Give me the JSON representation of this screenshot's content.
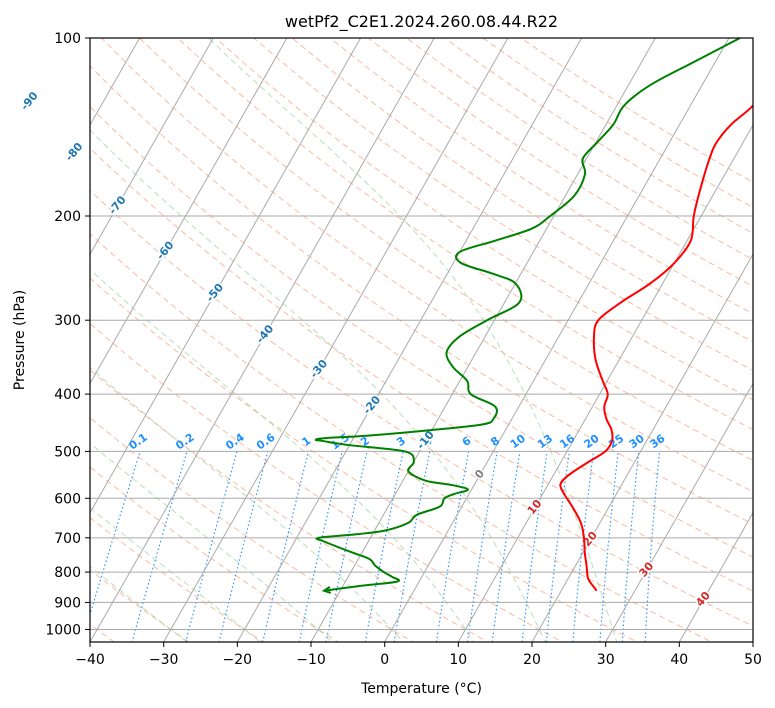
{
  "chart_data": {
    "type": "line",
    "title": "wetPf2_C2E1.2024.260.08.44.R22",
    "xlabel": "Temperature (°C)",
    "ylabel": "Pressure (hPa)",
    "xlim": [
      -40,
      50
    ],
    "ylim": [
      1050,
      100
    ],
    "x_ticks": [
      -40,
      -30,
      -20,
      -10,
      0,
      10,
      20,
      30,
      40,
      50
    ],
    "x_tick_labels": [
      "−40",
      "−30",
      "−20",
      "−10",
      "0",
      "10",
      "20",
      "30",
      "40",
      "50"
    ],
    "y_ticks": [
      100,
      200,
      300,
      400,
      500,
      600,
      700,
      800,
      900,
      1000
    ],
    "y_tick_labels": [
      "100",
      "200",
      "300",
      "400",
      "500",
      "600",
      "700",
      "800",
      "900",
      "1000"
    ],
    "grid": true,
    "colors": {
      "temperature": "#ff0000",
      "dewpoint": "#008000",
      "isotherm": "#aaaaaa",
      "isobar": "#aaaaaa",
      "dry_adiabat": "#f4a582",
      "moist_adiabat": "#a6d8a6",
      "mixing_ratio": "#1e90ff",
      "upper_label": "#1f77b4",
      "dry_label": "#d62728",
      "zero_label": "#808080"
    },
    "series": [
      {
        "name": "Temperature",
        "pressure": [
          860,
          845,
          820,
          780,
          740,
          700,
          660,
          620,
          590,
          570,
          555,
          540,
          520,
          500,
          480,
          460,
          440,
          420,
          400,
          380,
          350,
          320,
          300,
          280,
          260,
          240,
          220,
          200,
          180,
          160,
          150,
          140,
          130,
          120,
          110,
          100
        ],
        "values": [
          24.8,
          24.0,
          22.7,
          21.5,
          20.2,
          19.0,
          17.4,
          15.0,
          12.9,
          11.7,
          11.8,
          12.5,
          13.8,
          15.2,
          15.3,
          14.4,
          12.8,
          11.6,
          11.1,
          9.4,
          6.8,
          4.8,
          4.1,
          5.8,
          8.3,
          10.0,
          10.5,
          9.0,
          7.8,
          6.7,
          6.4,
          7.0,
          8.5,
          8.7,
          9.1,
          11.6
        ]
      },
      {
        "name": "Dewpoint",
        "pressure": [
          860,
          845,
          830,
          815,
          800,
          780,
          760,
          740,
          710,
          700,
          690,
          680,
          660,
          640,
          620,
          600,
          590,
          580,
          570,
          560,
          540,
          520,
          500,
          488,
          480,
          478,
          475,
          470,
          460,
          450,
          440,
          420,
          400,
          380,
          360,
          340,
          320,
          300,
          280,
          260,
          250,
          240,
          230,
          220,
          210,
          200,
          185,
          170,
          160,
          150,
          140,
          130,
          120,
          110,
          100
        ],
        "values": [
          -12.2,
          -8.0,
          -3.0,
          -4.0,
          -5.5,
          -7.2,
          -8.5,
          -11.5,
          -16.0,
          -17.0,
          -12.0,
          -8.5,
          -6.0,
          -5.5,
          -3.0,
          -3.0,
          -2.0,
          -0.5,
          -3.0,
          -7.0,
          -10.0,
          -10.0,
          -12.0,
          -20.0,
          -24.0,
          -25.0,
          -24.0,
          -18.0,
          -10.0,
          -3.5,
          -2.5,
          -3.2,
          -7.5,
          -9.0,
          -12.0,
          -14.0,
          -13.5,
          -11.0,
          -8.0,
          -10.0,
          -14.0,
          -19.0,
          -20.0,
          -16.0,
          -12.0,
          -10.5,
          -8.8,
          -9.0,
          -10.5,
          -9.8,
          -9.0,
          -9.0,
          -7.0,
          -3.0,
          1.5
        ]
      }
    ],
    "isotherms": [
      -110,
      -100,
      -90,
      -80,
      -70,
      -60,
      -50,
      -40,
      -30,
      -20,
      -10,
      0,
      10,
      20,
      30,
      40,
      50
    ],
    "dry_adiabats_C": [
      -50,
      -40,
      -30,
      -20,
      -10,
      0,
      10,
      20,
      30,
      40,
      50,
      60,
      70,
      80,
      90,
      100,
      110,
      120,
      130,
      140,
      150,
      160,
      170,
      180,
      190,
      200
    ],
    "moist_adiabats_C": [
      -30,
      -20,
      -10,
      0,
      10,
      20,
      30
    ],
    "mixing_ratio_lines_gkg": [
      0.1,
      0.2,
      0.4,
      0.6,
      1,
      1.5,
      2,
      3,
      4,
      6,
      8,
      10,
      13,
      16,
      20,
      25,
      30,
      36
    ],
    "mixing_ratio_labels": [
      "0.1",
      "0.2",
      "0.4",
      "0.6",
      "1",
      "1.5",
      "2",
      "3",
      "4",
      "6",
      "8",
      "10",
      "13",
      "16",
      "20",
      "25",
      "30",
      "36"
    ],
    "isotherm_labels": [
      {
        "text": "-100",
        "value": -100,
        "pressure": 107
      },
      {
        "text": "-90",
        "value": -90,
        "pressure": 128
      },
      {
        "text": "-80",
        "value": -80,
        "pressure": 156
      },
      {
        "text": "-70",
        "value": -70,
        "pressure": 192
      },
      {
        "text": "-60",
        "value": -60,
        "pressure": 229
      },
      {
        "text": "-50",
        "value": -50,
        "pressure": 270
      },
      {
        "text": "-40",
        "value": -40,
        "pressure": 317
      },
      {
        "text": "-30",
        "value": -30,
        "pressure": 363
      },
      {
        "text": "-20",
        "value": -20,
        "pressure": 418
      },
      {
        "text": "-10",
        "value": -10,
        "pressure": 479
      },
      {
        "text": "0",
        "value": 0,
        "pressure": 547
      },
      {
        "text": "10",
        "value": 10,
        "pressure": 622
      },
      {
        "text": "20",
        "value": 20,
        "pressure": 704
      },
      {
        "text": "30",
        "value": 30,
        "pressure": 793
      },
      {
        "text": "40",
        "value": 40,
        "pressure": 890
      }
    ]
  }
}
